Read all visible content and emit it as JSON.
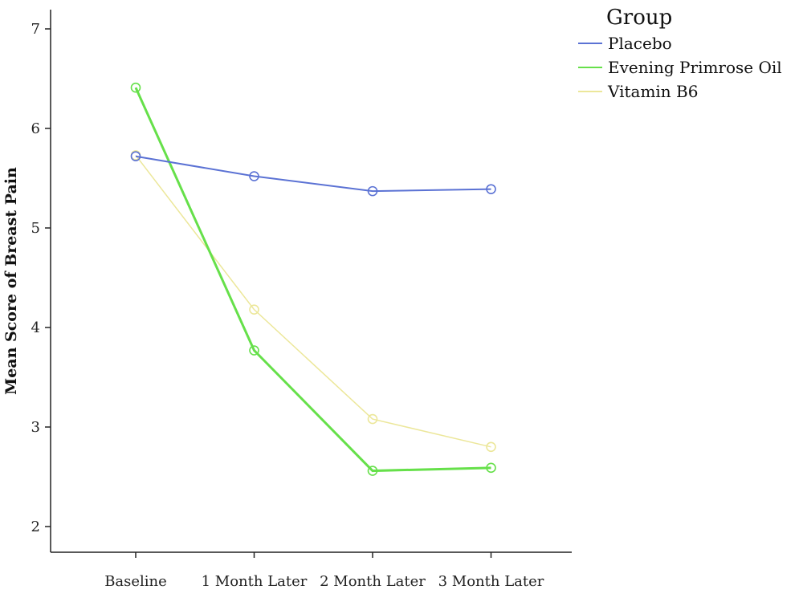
{
  "chart_data": {
    "type": "line",
    "categories": [
      "Baseline",
      "1 Month Later",
      "2 Month Later",
      "3 Month Later"
    ],
    "ylabel": "Mean Score of Breast Pain",
    "xlabel": "",
    "ylim": [
      1.75,
      7.2
    ],
    "yticks": [
      2,
      3,
      4,
      5,
      6,
      7
    ],
    "grid": false,
    "legend": {
      "title": "Group",
      "placement": "top-right"
    },
    "series": [
      {
        "name": "Placebo",
        "color": "#5b72d4",
        "values": [
          5.72,
          5.52,
          5.37,
          5.39
        ]
      },
      {
        "name": "Evening Primrose Oil",
        "color": "#66e04a",
        "values": [
          6.41,
          3.77,
          2.56,
          2.59
        ]
      },
      {
        "name": "Vitamin B6",
        "color": "#ece79a",
        "values": [
          5.73,
          4.18,
          3.08,
          2.8
        ]
      }
    ]
  }
}
